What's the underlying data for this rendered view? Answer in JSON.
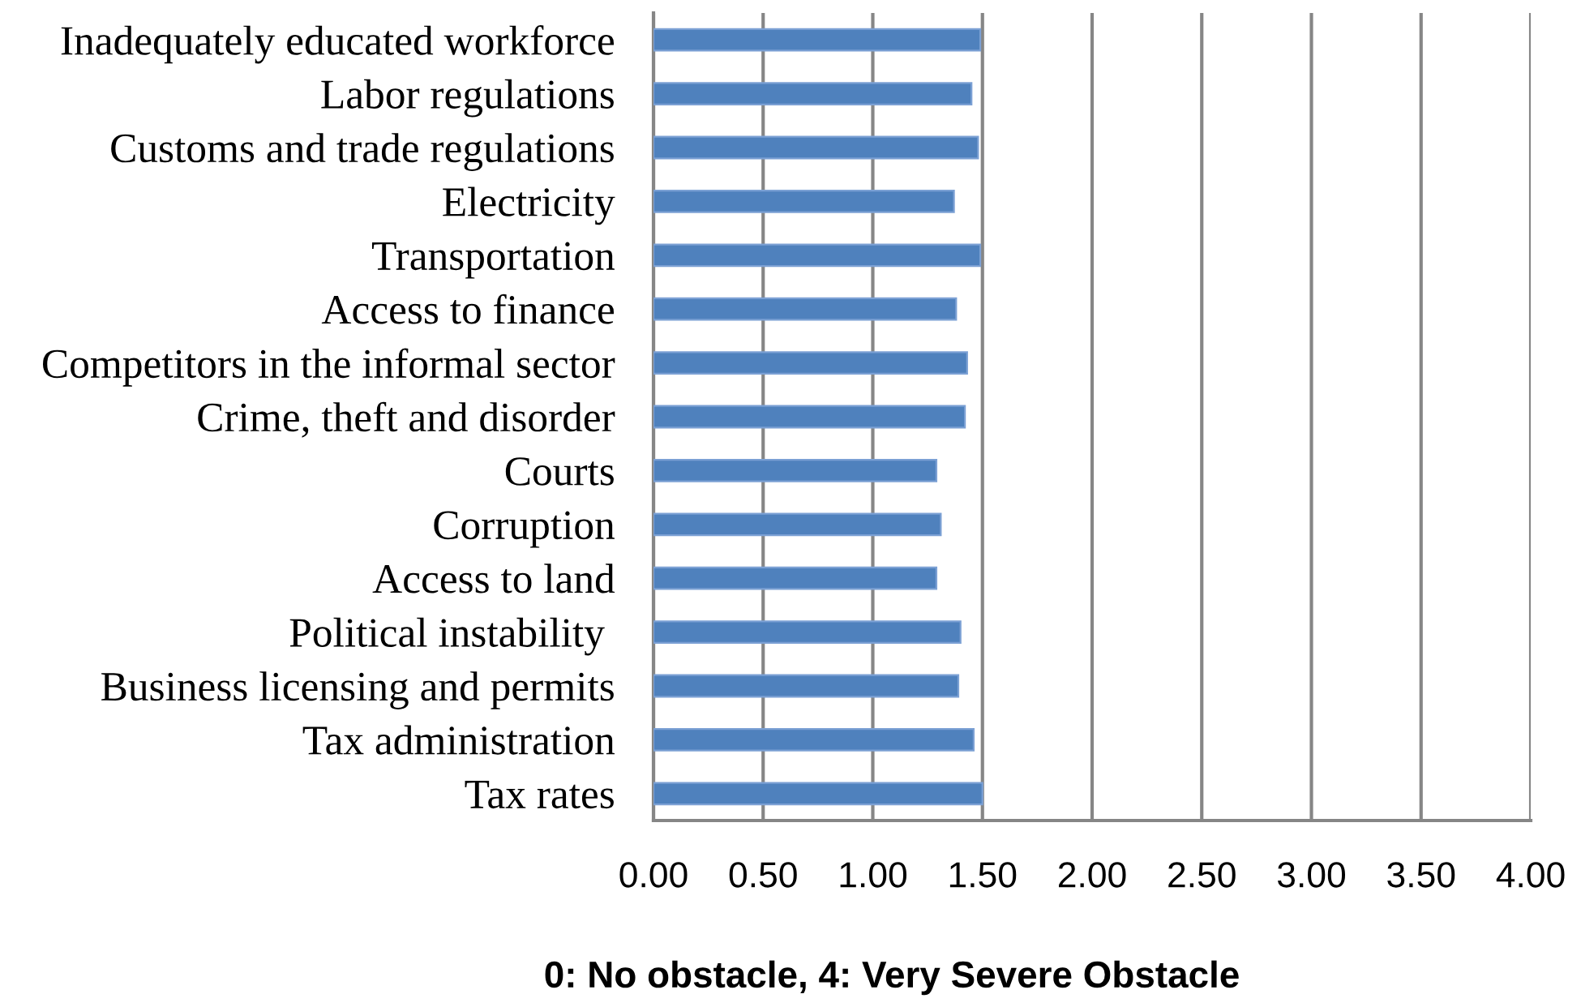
{
  "chart_data": {
    "type": "bar",
    "orientation": "horizontal",
    "categories": [
      "Inadequately educated workforce",
      "Labor regulations",
      "Customs and trade regulations",
      "Electricity",
      "Transportation",
      "Access to finance",
      "Competitors in the informal sector",
      "Crime, theft and disorder",
      "Courts",
      "Corruption",
      "Access to land",
      "Political instability ",
      "Business licensing and permits",
      "Tax administration",
      "Tax rates"
    ],
    "values": [
      1.49,
      1.45,
      1.48,
      1.37,
      1.49,
      1.38,
      1.43,
      1.42,
      1.29,
      1.31,
      1.29,
      1.4,
      1.39,
      1.46,
      1.5
    ],
    "color": "#4f81bd",
    "xlim": [
      0,
      4
    ],
    "xticks": [
      {
        "value": 0,
        "label": "0.00"
      },
      {
        "value": 0.5,
        "label": "0.50"
      },
      {
        "value": 1,
        "label": "1.00"
      },
      {
        "value": 1.5,
        "label": "1.50"
      },
      {
        "value": 2,
        "label": "2.00"
      },
      {
        "value": 2.5,
        "label": "2.50"
      },
      {
        "value": 3,
        "label": "3.00"
      },
      {
        "value": 3.5,
        "label": "3.50"
      },
      {
        "value": 4,
        "label": "4.00"
      }
    ],
    "xlabel": "0: No obstacle, 4: Very Severe Obstacle",
    "grid": "x",
    "legend": false
  }
}
